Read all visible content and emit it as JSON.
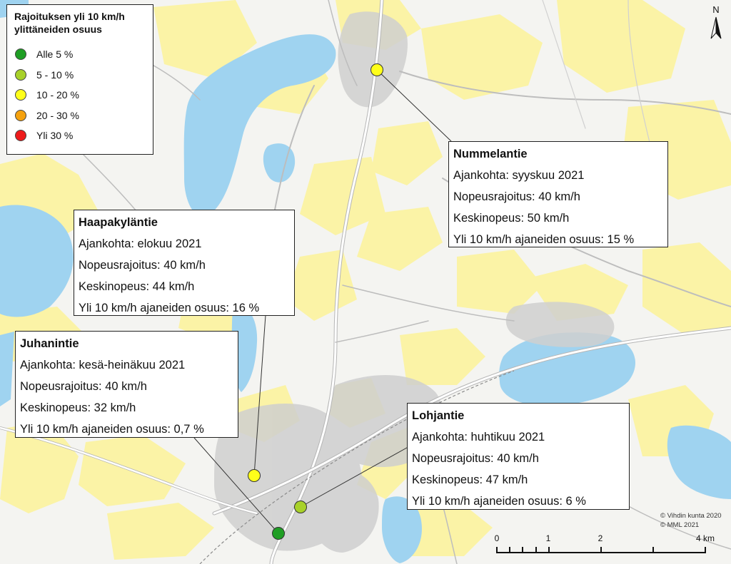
{
  "legend": {
    "title": "Rajoituksen yli 10 km/h\nylittäneiden osuus",
    "items": [
      {
        "label": "Alle 5 %",
        "color": "#1f9e24"
      },
      {
        "label": "5 - 10 %",
        "color": "#a8d12a"
      },
      {
        "label": "10 - 20 %",
        "color": "#ffff1a"
      },
      {
        "label": "20 - 30 %",
        "color": "#f5a20f"
      },
      {
        "label": "Yli 30 %",
        "color": "#ee1b1b"
      }
    ]
  },
  "callouts": [
    {
      "id": "nummelantie",
      "title": "Nummelantie",
      "rows": [
        "Ajankohta: syyskuu 2021",
        "Nopeusrajoitus: 40 km/h",
        "Keskinopeus: 50 km/h",
        "Yli 10 km/h ajaneiden osuus: 15 %"
      ],
      "marker_color": "#ffff1a"
    },
    {
      "id": "haapakylantie",
      "title": "Haapakyläntie",
      "rows": [
        "Ajankohta: elokuu 2021",
        "Nopeusrajoitus: 40 km/h",
        "Keskinopeus: 44 km/h",
        "Yli 10 km/h ajaneiden osuus: 16 %"
      ],
      "marker_color": "#ffff1a"
    },
    {
      "id": "juhanintie",
      "title": "Juhanintie",
      "rows": [
        "Ajankohta: kesä-heinäkuu 2021",
        "Nopeusrajoitus: 40 km/h",
        "Keskinopeus: 32 km/h",
        "Yli 10 km/h ajaneiden osuus: 0,7 %"
      ],
      "marker_color": "#1f9e24"
    },
    {
      "id": "lohjantie",
      "title": "Lohjantie",
      "rows": [
        "Ajankohta: huhtikuu 2021",
        "Nopeusrajoitus: 40 km/h",
        "Keskinopeus: 47 km/h",
        "Yli 10 km/h ajaneiden osuus: 6 %"
      ],
      "marker_color": "#a8d12a"
    }
  ],
  "north_arrow": "N",
  "credits": [
    "© Vihdin kunta 2020",
    "© MML 2021"
  ],
  "scale": {
    "labels": [
      "0",
      "1",
      "2",
      "4 km"
    ]
  },
  "colors": {
    "water": "#9fd3f0",
    "land": "#f4f4f1",
    "fields": "#fbf3a6",
    "buildings": "#c9c9c9",
    "roads": "#ffffff"
  }
}
